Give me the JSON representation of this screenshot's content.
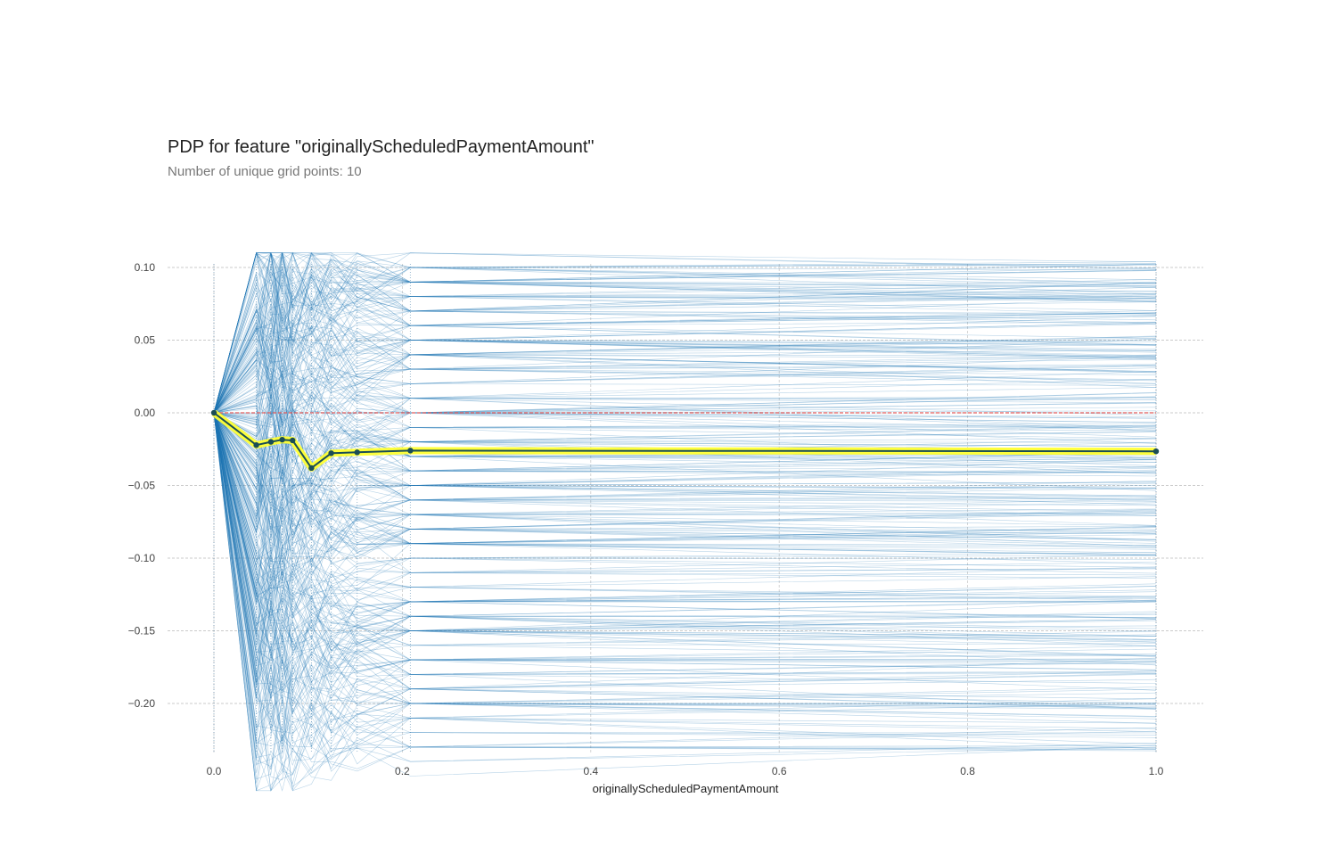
{
  "title": "PDP for feature \"originallyScheduledPaymentAmount\"",
  "subtitle": "Number of unique grid points: 10",
  "chart_data": {
    "type": "line",
    "xlabel": "originallyScheduledPaymentAmount",
    "ylabel": "",
    "xlim": [
      0.0,
      1.0
    ],
    "ylim": [
      -0.235,
      0.102
    ],
    "xticks": [
      0.0,
      0.2,
      0.4,
      0.6,
      0.8,
      1.0
    ],
    "xtick_labels": [
      "0.0",
      "0.2",
      "0.4",
      "0.6",
      "0.8",
      "1.0"
    ],
    "yticks": [
      0.1,
      0.05,
      0.0,
      -0.05,
      -0.1,
      -0.15,
      -0.2
    ],
    "ytick_labels": [
      "0.10",
      "0.05",
      "0.00",
      "−0.05",
      "−0.10",
      "−0.15",
      "−0.20"
    ],
    "grid_x": [
      0.0,
      0.045,
      0.0605,
      0.0725,
      0.0835,
      0.1035,
      0.1245,
      0.152,
      0.2085,
      1.0
    ],
    "series": [
      {
        "values": [
          0.0,
          -0.0222,
          -0.02,
          -0.0185,
          -0.019,
          -0.038,
          -0.0278,
          -0.0272,
          -0.026,
          -0.0265
        ]
      }
    ],
    "ice_line_color": "#1f77b4",
    "pdp_line_color": "#1a4d55",
    "pdp_highlight_color": "#ffff33",
    "zero_line_color": "#e05a5a",
    "grid": true
  }
}
